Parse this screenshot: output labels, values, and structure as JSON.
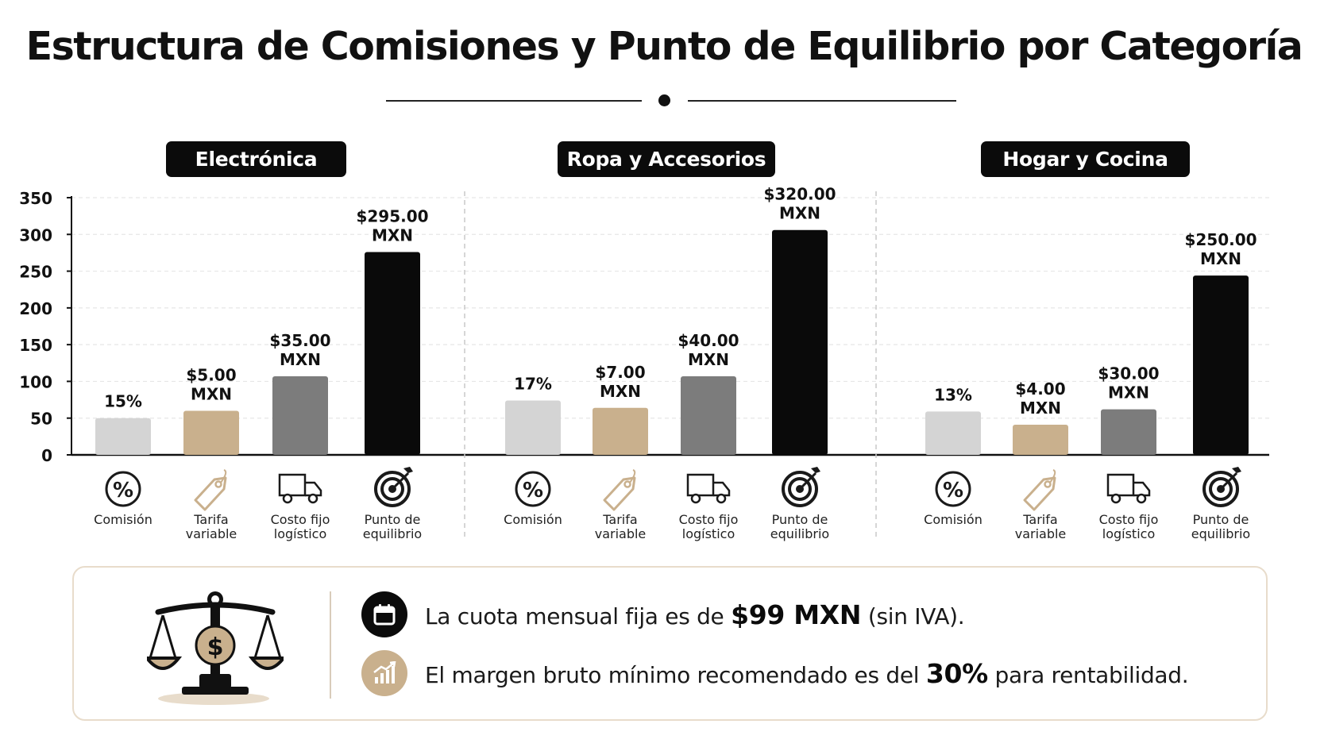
{
  "title": "Estructura de Comisiones y Punto de Equilibrio por Categoría",
  "colors": {
    "comision": "#d4d4d4",
    "tarifa": "#c9b08d",
    "costo": "#7c7c7c",
    "punto": "#0a0a0a",
    "icon_dark": "#1a1a1a",
    "icon_tan": "#c9b08d",
    "grid": "#e6e6e6",
    "axis": "#111111"
  },
  "metric_labels": [
    {
      "label": "Comisión",
      "icon": "percent-circle-icon"
    },
    {
      "label": "Tarifa variable",
      "icon": "price-tag-icon"
    },
    {
      "label": "Costo fijo logístico",
      "icon": "delivery-truck-icon"
    },
    {
      "label": "Punto de equilibrio",
      "icon": "target-arrow-icon"
    }
  ],
  "chart_data": {
    "type": "bar",
    "yticks": [
      0,
      50,
      100,
      150,
      200,
      250,
      300,
      350
    ],
    "ylim": [
      0,
      350
    ],
    "grid": true,
    "groups": [
      {
        "name": "Electrónica",
        "bars": [
          {
            "metric": "Comisión",
            "value": 50,
            "label": "15%"
          },
          {
            "metric": "Tarifa variable",
            "value": 60,
            "label": "$5.00 MXN"
          },
          {
            "metric": "Costo fijo logístico",
            "value": 107,
            "label": "$35.00 MXN"
          },
          {
            "metric": "Punto de equilibrio",
            "value": 276,
            "label": "$295.00 MXN"
          }
        ]
      },
      {
        "name": "Ropa y Accesorios",
        "bars": [
          {
            "metric": "Comisión",
            "value": 74,
            "label": "17%"
          },
          {
            "metric": "Tarifa variable",
            "value": 64,
            "label": "$7.00 MXN"
          },
          {
            "metric": "Costo fijo logístico",
            "value": 107,
            "label": "$40.00 MXN"
          },
          {
            "metric": "Punto de equilibrio",
            "value": 306,
            "label": "$320.00 MXN"
          }
        ]
      },
      {
        "name": "Hogar y Cocina",
        "bars": [
          {
            "metric": "Comisión",
            "value": 59,
            "label": "13%"
          },
          {
            "metric": "Tarifa variable",
            "value": 41,
            "label": "$4.00 MXN"
          },
          {
            "metric": "Costo fijo logístico",
            "value": 62,
            "label": "$30.00 MXN"
          },
          {
            "metric": "Punto de equilibrio",
            "value": 244,
            "label": "$250.00 MXN"
          }
        ]
      }
    ]
  },
  "info": {
    "scale_icon": "balance-scale-dollar-icon",
    "row1_icon": "calendar-icon",
    "row1_pre": "La cuota mensual fija es de ",
    "row1_bold": "$99 MXN",
    "row1_post": " (sin IVA).",
    "row2_icon": "growth-chart-icon",
    "row2_pre": "El margen bruto mínimo recomendado es del ",
    "row2_bold": "30%",
    "row2_post": " para rentabilidad."
  }
}
